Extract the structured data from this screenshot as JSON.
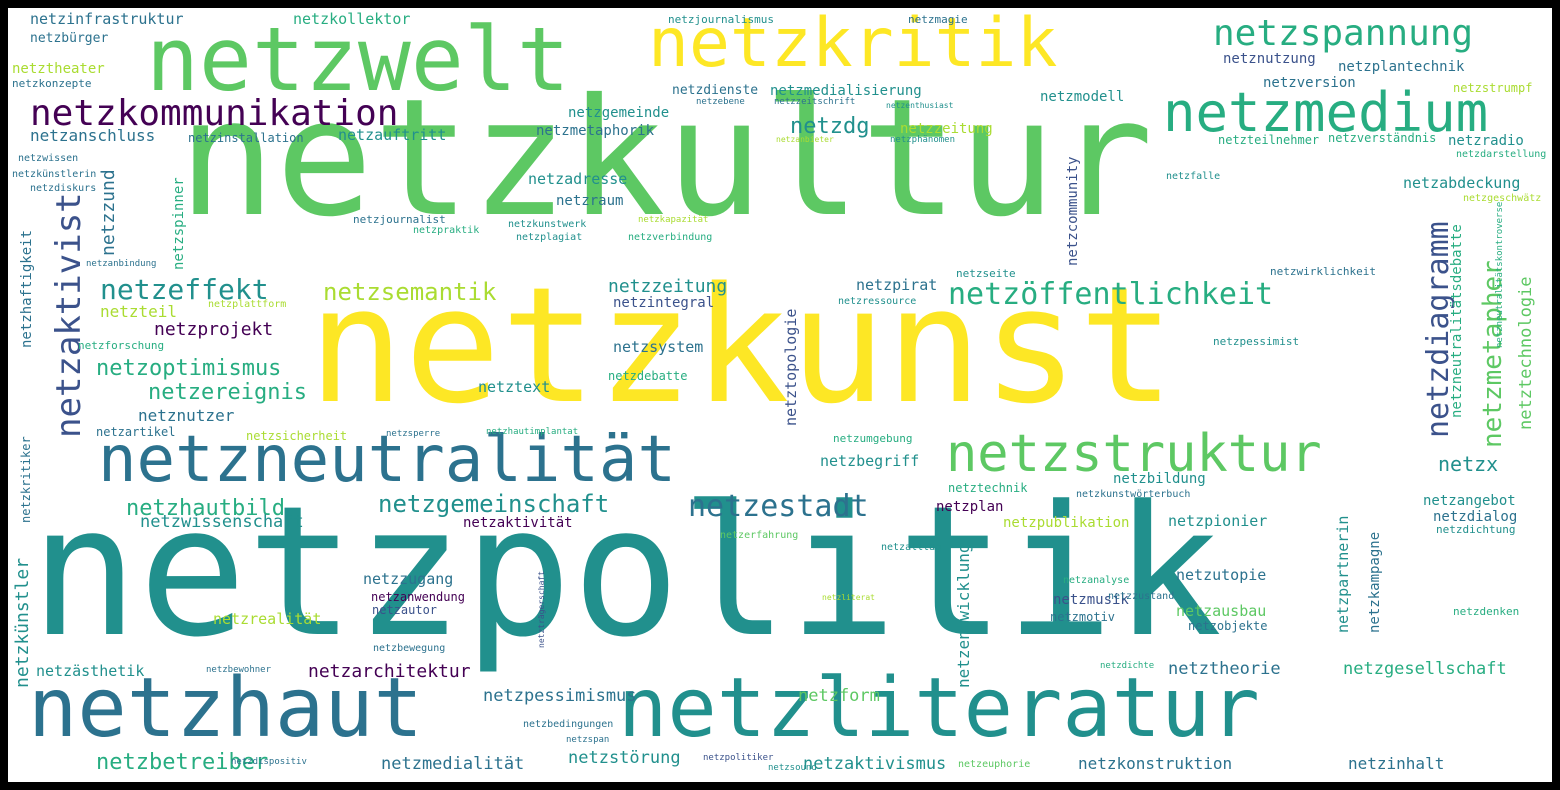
{
  "wordcloud": {
    "colors": {
      "c1": "#440154",
      "c2": "#3b528b",
      "c3": "#2c728e",
      "c4": "#21908d",
      "c5": "#27ad81",
      "c6": "#5dc863",
      "c7": "#aadc32",
      "c8": "#fde725"
    },
    "words": [
      {
        "text": "netzpolitik",
        "color": "#21908d"
      },
      {
        "text": "netzkultur",
        "color": "#5dc863"
      },
      {
        "text": "netzkunst",
        "color": "#fde725"
      },
      {
        "text": "netzwelt",
        "color": "#5dc863"
      },
      {
        "text": "netzkritik",
        "color": "#fde725"
      },
      {
        "text": "netzliteratur",
        "color": "#21908d"
      },
      {
        "text": "netzhaut",
        "color": "#2c728e"
      },
      {
        "text": "netzneutralität",
        "color": "#2c728e"
      },
      {
        "text": "netzstruktur",
        "color": "#5dc863"
      },
      {
        "text": "netzmedium",
        "color": "#27ad81"
      },
      {
        "text": "netzspannung",
        "color": "#27ad81"
      },
      {
        "text": "netzkommunikation",
        "color": "#440154"
      },
      {
        "text": "netzöffentlichkeit",
        "color": "#27ad81"
      },
      {
        "text": "netzgemeinschaft",
        "color": "#21908d"
      },
      {
        "text": "netzestadt",
        "color": "#2c728e"
      },
      {
        "text": "netzeffekt",
        "color": "#21908d"
      },
      {
        "text": "netzsemantik",
        "color": "#aadc32"
      },
      {
        "text": "netzaktivist",
        "color": "#3b528b"
      },
      {
        "text": "netzdiagramm",
        "color": "#3b528b"
      },
      {
        "text": "netzmetapher",
        "color": "#5dc863"
      },
      {
        "text": "netzoptimismus",
        "color": "#27ad81"
      },
      {
        "text": "netzhautbild",
        "color": "#27ad81"
      },
      {
        "text": "netzereignis",
        "color": "#27ad81"
      },
      {
        "text": "netzprojekt",
        "color": "#440154"
      },
      {
        "text": "netzwissenschaft",
        "color": "#21908d"
      },
      {
        "text": "netzbetreiber",
        "color": "#27ad81"
      },
      {
        "text": "netzarchitektur",
        "color": "#440154"
      },
      {
        "text": "netzpessimismus",
        "color": "#2c728e"
      },
      {
        "text": "netzform",
        "color": "#5dc863"
      },
      {
        "text": "netztheorie",
        "color": "#2c728e"
      },
      {
        "text": "netzgesellschaft",
        "color": "#27ad81"
      },
      {
        "text": "netzkonstruktion",
        "color": "#2c728e"
      },
      {
        "text": "netzinhalt",
        "color": "#2c728e"
      },
      {
        "text": "netzmedialität",
        "color": "#2c728e"
      },
      {
        "text": "netzstörung",
        "color": "#21908d"
      },
      {
        "text": "netzaktivismus",
        "color": "#21908d"
      },
      {
        "text": "netzdg",
        "color": "#21908d"
      },
      {
        "text": "netzzeitung",
        "color": "#aadc32"
      },
      {
        "text": "netzadresse",
        "color": "#21908d"
      },
      {
        "text": "netzraum",
        "color": "#2c728e"
      },
      {
        "text": "netzgemeinde",
        "color": "#21908d"
      },
      {
        "text": "netzmetaphorik",
        "color": "#2c728e"
      },
      {
        "text": "netzdienste",
        "color": "#2c728e"
      },
      {
        "text": "netzmedialisierung",
        "color": "#21908d"
      },
      {
        "text": "netzmodell",
        "color": "#21908d"
      },
      {
        "text": "netzanschluss",
        "color": "#2c728e"
      },
      {
        "text": "netzauftritt",
        "color": "#21908d"
      },
      {
        "text": "netzinstallation",
        "color": "#2c728e"
      },
      {
        "text": "netzinfrastruktur",
        "color": "#2c728e"
      },
      {
        "text": "netzkollektor",
        "color": "#27ad81"
      },
      {
        "text": "netzjournalismus",
        "color": "#21908d"
      },
      {
        "text": "netzmagie",
        "color": "#2c728e"
      },
      {
        "text": "netzbürger",
        "color": "#2c728e"
      },
      {
        "text": "netztheater",
        "color": "#aadc32"
      },
      {
        "text": "netzkonzepte",
        "color": "#2c728e"
      },
      {
        "text": "netzplantechnik",
        "color": "#2c728e"
      },
      {
        "text": "netznutzung",
        "color": "#3b528b"
      },
      {
        "text": "netzversion",
        "color": "#2c728e"
      },
      {
        "text": "netzstrumpf",
        "color": "#aadc32"
      },
      {
        "text": "netzradio",
        "color": "#21908d"
      },
      {
        "text": "netzteilnehmer",
        "color": "#27ad81"
      },
      {
        "text": "netzverständnis",
        "color": "#27ad81"
      },
      {
        "text": "netzabdeckung",
        "color": "#21908d"
      },
      {
        "text": "netzzeitung",
        "color": "#21908d"
      },
      {
        "text": "netzintegral",
        "color": "#3b528b"
      },
      {
        "text": "netzpirat",
        "color": "#2c728e"
      },
      {
        "text": "netzsystem",
        "color": "#2c728e"
      },
      {
        "text": "netzdebatte",
        "color": "#27ad81"
      },
      {
        "text": "netztext",
        "color": "#21908d"
      },
      {
        "text": "netznutzer",
        "color": "#2c728e"
      },
      {
        "text": "netzartikel",
        "color": "#2c728e"
      },
      {
        "text": "netzsicherheit",
        "color": "#aadc32"
      },
      {
        "text": "netzteil",
        "color": "#aadc32"
      },
      {
        "text": "netzforschung",
        "color": "#27ad81"
      },
      {
        "text": "netzbegriff",
        "color": "#21908d"
      },
      {
        "text": "netzbildung",
        "color": "#21908d"
      },
      {
        "text": "netztechnik",
        "color": "#27ad81"
      },
      {
        "text": "netzplan",
        "color": "#440154"
      },
      {
        "text": "netzpublikation",
        "color": "#aadc32"
      },
      {
        "text": "netzpionier",
        "color": "#21908d"
      },
      {
        "text": "netzangebot",
        "color": "#21908d"
      },
      {
        "text": "netzdialog",
        "color": "#2c728e"
      },
      {
        "text": "netzx",
        "color": "#21908d"
      },
      {
        "text": "netzaktivität",
        "color": "#440154"
      },
      {
        "text": "netzzugang",
        "color": "#2c728e"
      },
      {
        "text": "netzanwendung",
        "color": "#440154"
      },
      {
        "text": "netzautor",
        "color": "#3b528b"
      },
      {
        "text": "netzrealität",
        "color": "#aadc32"
      },
      {
        "text": "netzmusik",
        "color": "#3b528b"
      },
      {
        "text": "netzmotiv",
        "color": "#2c728e"
      },
      {
        "text": "netzutopie",
        "color": "#2c728e"
      },
      {
        "text": "netzausbau",
        "color": "#5dc863"
      },
      {
        "text": "netzobjekte",
        "color": "#2c728e"
      },
      {
        "text": "netzästhetik",
        "color": "#21908d"
      },
      {
        "text": "netzdenken",
        "color": "#27ad81"
      },
      {
        "text": "netzdichtung",
        "color": "#21908d"
      },
      {
        "text": "netzjournalist",
        "color": "#2c728e"
      },
      {
        "text": "netzkunstwerk",
        "color": "#21908d"
      },
      {
        "text": "netzplagiat",
        "color": "#21908d"
      },
      {
        "text": "netzpraktik",
        "color": "#27ad81"
      },
      {
        "text": "netzverbindung",
        "color": "#27ad81"
      },
      {
        "text": "netzkapazität",
        "color": "#aadc32"
      },
      {
        "text": "netzseite",
        "color": "#21908d"
      },
      {
        "text": "netzwirklichkeit",
        "color": "#2c728e"
      },
      {
        "text": "netzressource",
        "color": "#21908d"
      },
      {
        "text": "netzplattform",
        "color": "#aadc32"
      },
      {
        "text": "netzpessimist",
        "color": "#21908d"
      },
      {
        "text": "netzsperre",
        "color": "#2c728e"
      },
      {
        "text": "netzhautimplantat",
        "color": "#27ad81"
      },
      {
        "text": "netzumgebung",
        "color": "#27ad81"
      },
      {
        "text": "netzspinner",
        "color": "#27ad81"
      },
      {
        "text": "netzhaftigkeit",
        "color": "#2c728e"
      },
      {
        "text": "netzkünstler",
        "color": "#21908d"
      },
      {
        "text": "netzkritiker",
        "color": "#2c728e"
      },
      {
        "text": "netzcommunity",
        "color": "#3b528b"
      },
      {
        "text": "netztopologie",
        "color": "#3b528b"
      },
      {
        "text": "netzentwicklung",
        "color": "#21908d"
      },
      {
        "text": "netzpartnerin",
        "color": "#21908d"
      },
      {
        "text": "netzkampagne",
        "color": "#2c728e"
      },
      {
        "text": "netzneutralitätsdebatte",
        "color": "#27ad81"
      },
      {
        "text": "netztechnologie",
        "color": "#5dc863"
      },
      {
        "text": "netzzund",
        "color": "#2c728e"
      },
      {
        "text": "netzzustand",
        "color": "#2c728e"
      },
      {
        "text": "netzanalyse",
        "color": "#27ad81"
      },
      {
        "text": "netzalltag",
        "color": "#21908d"
      },
      {
        "text": "netzerfahrung",
        "color": "#5dc863"
      },
      {
        "text": "netzbewegung",
        "color": "#2c728e"
      },
      {
        "text": "netzbewohner",
        "color": "#2c728e"
      },
      {
        "text": "netzbedingungen",
        "color": "#2c728e"
      },
      {
        "text": "netzspan",
        "color": "#2c728e"
      },
      {
        "text": "netzdispositiv",
        "color": "#2c728e"
      },
      {
        "text": "netzpolitiker",
        "color": "#3b528b"
      },
      {
        "text": "netzsound",
        "color": "#21908d"
      },
      {
        "text": "netzeuphorie",
        "color": "#5dc863"
      },
      {
        "text": "netzdichte",
        "color": "#27ad81"
      },
      {
        "text": "netzliterat",
        "color": "#aadc32"
      },
      {
        "text": "netzkünstlerin",
        "color": "#2c728e"
      },
      {
        "text": "netzdiskurs",
        "color": "#2c728e"
      },
      {
        "text": "netzwissen",
        "color": "#2c728e"
      },
      {
        "text": "netzanbindung",
        "color": "#2c728e"
      },
      {
        "text": "netzebene",
        "color": "#2c728e"
      },
      {
        "text": "netzzeitschrift",
        "color": "#2c728e"
      },
      {
        "text": "netzenthusiast",
        "color": "#21908d"
      },
      {
        "text": "netzphänomen",
        "color": "#21908d"
      },
      {
        "text": "netzanbieter",
        "color": "#aadc32"
      },
      {
        "text": "netzdarstellung",
        "color": "#27ad81"
      },
      {
        "text": "netzfalle",
        "color": "#21908d"
      },
      {
        "text": "netzgeschwätz",
        "color": "#aadc32"
      },
      {
        "text": "netzneutralitätskontroverse",
        "color": "#27ad81"
      },
      {
        "text": "netzträgerschaft",
        "color": "#3b528b"
      },
      {
        "text": "netzkunstwörterbuch",
        "color": "#2c728e"
      }
    ]
  }
}
